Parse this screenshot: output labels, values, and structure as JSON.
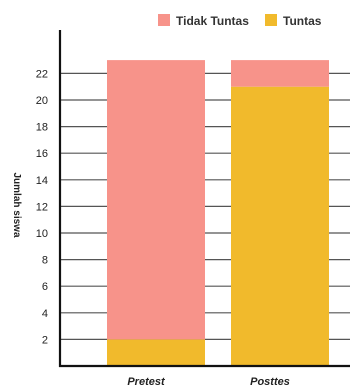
{
  "chart_data": {
    "type": "bar",
    "stacked": true,
    "categories": [
      "Pretest",
      "Posttes"
    ],
    "series": [
      {
        "name": "Tuntas",
        "values": [
          2,
          21
        ],
        "color": "#F1BA2C"
      },
      {
        "name": "Tidak Tuntas",
        "values": [
          21,
          2
        ],
        "color": "#F7938A"
      }
    ],
    "ylabel": "Jumlah siswa",
    "ylim": [
      0,
      24
    ],
    "yticks": [
      2,
      4,
      6,
      8,
      10,
      12,
      14,
      16,
      18,
      20,
      22
    ],
    "grid": true,
    "legend_position": "top-right",
    "legend_order": [
      "Tidak Tuntas",
      "Tuntas"
    ]
  }
}
